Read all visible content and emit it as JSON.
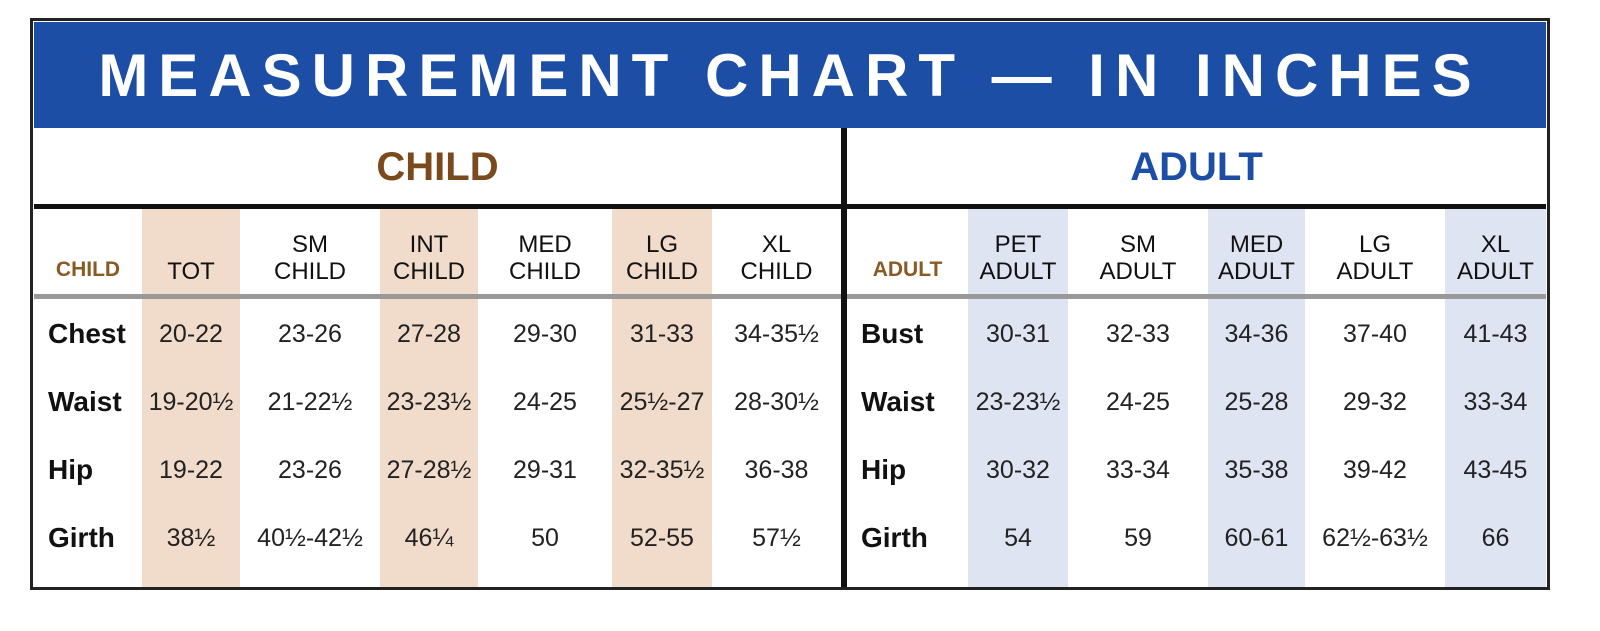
{
  "title": "MEASUREMENT CHART — IN INCHES",
  "child": {
    "heading": "CHILD",
    "corner": "CHILD",
    "columns": [
      [
        "TOT"
      ],
      [
        "SM",
        "CHILD"
      ],
      [
        "INT",
        "CHILD"
      ],
      [
        "MED",
        "CHILD"
      ],
      [
        "LG",
        "CHILD"
      ],
      [
        "XL",
        "CHILD"
      ]
    ],
    "rows": [
      {
        "label": "Chest",
        "values": [
          "20-22",
          "23-26",
          "27-28",
          "29-30",
          "31-33",
          "34-35½"
        ]
      },
      {
        "label": "Waist",
        "values": [
          "19-20½",
          "21-22½",
          "23-23½",
          "24-25",
          "25½-27",
          "28-30½"
        ]
      },
      {
        "label": "Hip",
        "values": [
          "19-22",
          "23-26",
          "27-28½",
          "29-31",
          "32-35½",
          "36-38"
        ]
      },
      {
        "label": "Girth",
        "values": [
          "38½",
          "40½-42½",
          "46¼",
          "50",
          "52-55",
          "57½"
        ]
      }
    ]
  },
  "adult": {
    "heading": "ADULT",
    "corner": "ADULT",
    "columns": [
      [
        "PET",
        "ADULT"
      ],
      [
        "SM",
        "ADULT"
      ],
      [
        "MED",
        "ADULT"
      ],
      [
        "LG",
        "ADULT"
      ],
      [
        "XL",
        "ADULT"
      ]
    ],
    "rows": [
      {
        "label": "Bust",
        "values": [
          "30-31",
          "32-33",
          "34-36",
          "37-40",
          "41-43"
        ]
      },
      {
        "label": "Waist",
        "values": [
          "23-23½",
          "24-25",
          "25-28",
          "29-32",
          "33-34"
        ]
      },
      {
        "label": "Hip",
        "values": [
          "30-32",
          "33-34",
          "35-38",
          "39-42",
          "43-45"
        ]
      },
      {
        "label": "Girth",
        "values": [
          "54",
          "59",
          "60-61",
          "62½-63½",
          "66"
        ]
      }
    ]
  }
}
